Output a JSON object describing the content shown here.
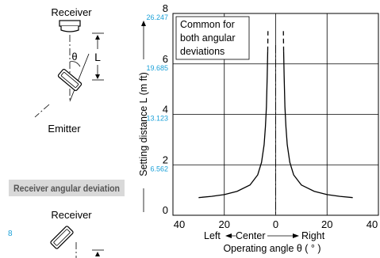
{
  "diagram_top": {
    "receiver_label": "Receiver",
    "emitter_label": "Emitter",
    "theta_symbol": "θ",
    "distance_symbol": "L"
  },
  "diagram_bottom": {
    "section_label": "Receiver angular deviation",
    "receiver_label": "Receiver",
    "stray_number": "8"
  },
  "chart_data": {
    "type": "line",
    "annotation": "Common for both angular deviations",
    "annotation_lines": [
      "Common for",
      "both angular",
      "deviations"
    ],
    "ylabel": "Setting distance L (m ft)",
    "xlabel": "Operating angle θ ( ° )",
    "direction_labels": {
      "left": "Left",
      "center": "Center",
      "right": "Right"
    },
    "xlim": [
      -40,
      40
    ],
    "ylim": [
      0,
      8
    ],
    "x_ticks": [
      {
        "value": -40,
        "label": "40"
      },
      {
        "value": -20,
        "label": "20"
      },
      {
        "value": 0,
        "label": "0"
      },
      {
        "value": 20,
        "label": "20"
      },
      {
        "value": 40,
        "label": "40"
      }
    ],
    "y_ticks": [
      {
        "value": 0,
        "label": "0",
        "ft": ""
      },
      {
        "value": 2,
        "label": "2",
        "ft": "6.562"
      },
      {
        "value": 4,
        "label": "4",
        "ft": "13.123"
      },
      {
        "value": 6,
        "label": "6",
        "ft": "19.685"
      },
      {
        "value": 8,
        "label": "8",
        "ft": "26.247"
      }
    ],
    "grid": true,
    "center_line": true,
    "series": [
      {
        "side": "left",
        "solid": [
          [
            -30,
            0.7
          ],
          [
            -25,
            0.75
          ],
          [
            -20,
            0.82
          ],
          [
            -15,
            0.95
          ],
          [
            -10,
            1.2
          ],
          [
            -7,
            1.6
          ],
          [
            -5.5,
            2.1
          ],
          [
            -4.5,
            2.8
          ],
          [
            -4,
            3.5
          ],
          [
            -3.6,
            4.3
          ],
          [
            -3.3,
            5.5
          ],
          [
            -3.1,
            6.5
          ]
        ],
        "dashed": [
          [
            -3.1,
            6.5
          ],
          [
            -3.0,
            7.3
          ]
        ]
      },
      {
        "side": "right",
        "solid": [
          [
            30,
            0.7
          ],
          [
            25,
            0.75
          ],
          [
            20,
            0.82
          ],
          [
            15,
            0.95
          ],
          [
            10,
            1.2
          ],
          [
            7,
            1.6
          ],
          [
            5.5,
            2.1
          ],
          [
            4.5,
            2.8
          ],
          [
            4,
            3.5
          ],
          [
            3.6,
            4.3
          ],
          [
            3.3,
            5.5
          ],
          [
            3.1,
            6.5
          ]
        ],
        "dashed": [
          [
            3.1,
            6.5
          ],
          [
            3.0,
            7.3
          ]
        ]
      }
    ],
    "colors": {
      "curve": "#000000",
      "grid": "#000000",
      "ft_labels": "#1aa0d8"
    }
  }
}
